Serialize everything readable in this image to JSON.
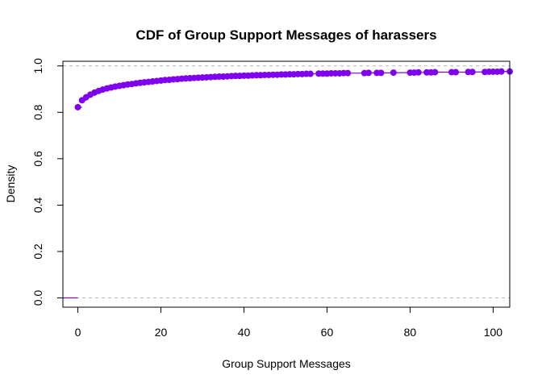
{
  "chart_data": {
    "type": "scatter",
    "title": "CDF of Group Support Messages of harassers",
    "xlabel": "Group Support Messages",
    "ylabel": "Density",
    "xlim": [
      -3.6,
      104
    ],
    "ylim": [
      -0.04,
      1.02
    ],
    "x_ticks": [
      0,
      20,
      40,
      60,
      80,
      100
    ],
    "x_tick_labels": [
      "0",
      "20",
      "40",
      "60",
      "80",
      "100"
    ],
    "y_ticks": [
      0.0,
      0.2,
      0.4,
      0.6,
      0.8,
      1.0
    ],
    "y_tick_labels": [
      "0.0",
      "0.2",
      "0.4",
      "0.6",
      "0.8",
      "1.0"
    ],
    "reference_lines": [
      0,
      1
    ],
    "grid": false,
    "series": [
      {
        "color": "#7f00ef",
        "x": [
          0,
          1,
          2,
          3,
          4,
          5,
          6,
          7,
          8,
          9,
          10,
          11,
          12,
          13,
          14,
          15,
          16,
          17,
          18,
          19,
          20,
          21,
          22,
          23,
          24,
          25,
          26,
          27,
          28,
          29,
          30,
          31,
          32,
          33,
          34,
          35,
          36,
          37,
          38,
          39,
          40,
          41,
          42,
          43,
          44,
          45,
          46,
          47,
          48,
          49,
          50,
          51,
          52,
          53,
          54,
          55,
          56,
          58,
          59,
          60,
          61,
          62,
          63,
          64,
          65,
          69,
          70,
          72,
          73,
          76,
          80,
          81,
          82,
          84,
          85,
          86,
          90,
          91,
          94,
          95,
          98,
          99,
          100,
          101,
          102,
          104
        ],
        "y": [
          0.822,
          0.852,
          0.865,
          0.876,
          0.885,
          0.892,
          0.898,
          0.903,
          0.907,
          0.911,
          0.914,
          0.917,
          0.92,
          0.922,
          0.925,
          0.927,
          0.929,
          0.931,
          0.933,
          0.935,
          0.937,
          0.939,
          0.94,
          0.942,
          0.943,
          0.945,
          0.946,
          0.947,
          0.948,
          0.949,
          0.95,
          0.951,
          0.952,
          0.953,
          0.954,
          0.954,
          0.955,
          0.956,
          0.957,
          0.957,
          0.958,
          0.958,
          0.959,
          0.96,
          0.96,
          0.961,
          0.961,
          0.962,
          0.962,
          0.963,
          0.963,
          0.964,
          0.964,
          0.965,
          0.965,
          0.966,
          0.966,
          0.967,
          0.967,
          0.967,
          0.968,
          0.968,
          0.968,
          0.969,
          0.969,
          0.969,
          0.97,
          0.97,
          0.97,
          0.971,
          0.971,
          0.971,
          0.972,
          0.972,
          0.972,
          0.973,
          0.973,
          0.973,
          0.974,
          0.974,
          0.974,
          0.975,
          0.975,
          0.975,
          0.976,
          0.976
        ]
      }
    ]
  }
}
